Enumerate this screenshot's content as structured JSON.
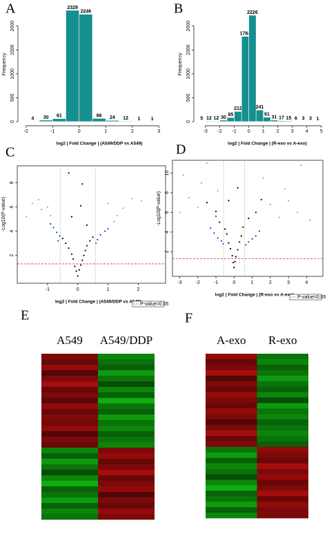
{
  "chart_data": [
    {
      "type": "histogram",
      "panel": "A",
      "x_label": "log2 | Fold Change | (A549/DDP vs A549)",
      "y_label": "Frequency",
      "color": "#168f8f",
      "bins": [
        -2,
        -1.5,
        -1,
        -0.5,
        0,
        0.5,
        1,
        1.5,
        2,
        2.5,
        3
      ],
      "values": [
        4,
        30,
        61,
        2329,
        2246,
        66,
        24,
        12,
        1,
        1
      ],
      "xlim": [
        -2.2,
        3.2
      ],
      "ylim": [
        0,
        2400
      ],
      "xticks": [
        -2,
        -1,
        0,
        1,
        2,
        3
      ],
      "yticks": [
        0,
        500,
        1000,
        1500,
        2000
      ]
    },
    {
      "type": "histogram",
      "panel": "B",
      "x_label": "log2 | Fold Change | (R-exo vs A-exo)",
      "y_label": "Frequency",
      "color": "#168f8f",
      "bins": [
        -3.5,
        -3,
        -2.5,
        -2,
        -1.5,
        -1,
        -0.5,
        0,
        0.5,
        1,
        1.5,
        2,
        2.5,
        3,
        3.5,
        4,
        4.5,
        5
      ],
      "values": [
        5,
        12,
        12,
        30,
        85,
        212,
        1784,
        2226,
        241,
        91,
        31,
        17,
        15,
        6,
        3,
        3,
        1
      ],
      "xlim": [
        -3.6,
        5.2
      ],
      "ylim": [
        0,
        2400
      ],
      "xticks": [
        -3,
        -2,
        -1,
        0,
        1,
        2,
        3,
        4,
        5
      ],
      "yticks": [
        0,
        500,
        1000,
        1500,
        2000
      ]
    },
    {
      "type": "volcano",
      "panel": "C",
      "x_label": "log2 | Fold Change | (A549/DDP vs A549)",
      "y_label": "-Log10(P-value)",
      "legend": "P-value=0.05",
      "xlim": [
        -2,
        2.9
      ],
      "ylim": [
        -0.3,
        9.4
      ],
      "xticks": [
        -1,
        0,
        1,
        2
      ],
      "yticks": [
        2,
        4,
        6,
        8
      ],
      "vlines": [
        -0.58,
        0.58
      ],
      "vline_color": "#7ccc7c",
      "hline": 1.3,
      "hline_color": "#cc3333",
      "series": [
        {
          "color": "#a8a888",
          "x": [
            -1.2,
            -1.5,
            -1.0,
            -1.7,
            1.2,
            1.5,
            1.8,
            2.1,
            2.7,
            -1.3,
            1.0,
            -0.9,
            1.3
          ],
          "values": [
            5.8,
            6.3,
            6.0,
            5.2,
            4.8,
            5.9,
            6.7,
            6.5,
            5.8,
            6.6,
            6.3,
            5.3,
            5.3
          ]
        },
        {
          "color": "#2a3acc",
          "x": [
            -0.6,
            -0.7,
            -0.8,
            0.65,
            0.75,
            0.9,
            -0.9,
            1.0,
            0.6,
            -0.65
          ],
          "values": [
            3.6,
            3.9,
            4.3,
            3.3,
            3.7,
            4.0,
            4.6,
            4.2,
            3.0,
            3.2
          ]
        },
        {
          "color": "#000000",
          "x": [
            0,
            0.05,
            -0.05,
            0.1,
            -0.1,
            0.15,
            -0.15,
            0.2,
            -0.2,
            0.25,
            -0.3,
            0.3,
            -0.4,
            0.4,
            0.5,
            -0.5,
            0.3,
            -0.2,
            0.1,
            -0.3,
            0.15
          ],
          "values": [
            0.3,
            0.8,
            0.7,
            1.2,
            1.1,
            1.6,
            1.7,
            2.0,
            2.1,
            2.4,
            2.6,
            2.8,
            3.0,
            3.2,
            3.5,
            3.4,
            4.5,
            5.2,
            6.1,
            8.8,
            7.9
          ]
        }
      ]
    },
    {
      "type": "volcano",
      "panel": "D",
      "x_label": "log2 | Fold Change | (R-exo vs A-exo)",
      "y_label": "-Log10(P-value)",
      "legend": "P-value=0.05",
      "xlim": [
        -3.4,
        4.9
      ],
      "ylim": [
        -0.5,
        11.3
      ],
      "xticks": [
        -3,
        -2,
        -1,
        0,
        1,
        2,
        3,
        4
      ],
      "yticks": [
        2,
        4,
        6,
        8,
        10
      ],
      "vlines": [
        -0.58,
        0.58
      ],
      "vline_color": "#7ccc7c",
      "hline": 1.3,
      "hline_color": "#cc3333",
      "series": [
        {
          "color": "#a8a888",
          "x": [
            -2.8,
            -2.5,
            -2.0,
            -1.8,
            -1.5,
            -3.0,
            2.0,
            2.5,
            3.0,
            3.5,
            4.2,
            3.7,
            2.8,
            -0.9,
            1.6
          ],
          "values": [
            9.8,
            7.5,
            6.5,
            9.0,
            11.0,
            6.0,
            6.8,
            5.5,
            7.2,
            6.0,
            5.2,
            10.8,
            8.4,
            8.2,
            9.5
          ]
        },
        {
          "color": "#2a3acc",
          "x": [
            -0.6,
            -0.7,
            -0.9,
            -1.1,
            0.65,
            0.8,
            1.0,
            1.2,
            -1.3,
            1.4,
            -1.0
          ],
          "values": [
            2.8,
            3.1,
            3.4,
            3.9,
            2.7,
            3.0,
            3.3,
            3.6,
            4.4,
            4.1,
            5.6
          ]
        },
        {
          "color": "#000000",
          "x": [
            0,
            0.05,
            -0.05,
            0.1,
            -0.1,
            0.2,
            -0.2,
            0.3,
            -0.3,
            0.4,
            -0.4,
            0.5,
            -0.5,
            -0.8,
            0.8,
            -1.0,
            1.2,
            -0.3,
            0.2,
            -1.5,
            1.5
          ],
          "values": [
            0.4,
            1.0,
            0.9,
            1.5,
            1.6,
            2.2,
            2.3,
            3.0,
            2.9,
            3.6,
            3.8,
            4.5,
            4.3,
            5.0,
            5.4,
            6.1,
            6.0,
            7.2,
            8.5,
            7.0,
            7.3
          ]
        }
      ]
    },
    {
      "type": "heatmap",
      "panel": "E",
      "columns": [
        "A549",
        "A549/DDP"
      ],
      "clim": [
        -1,
        1
      ],
      "low_color": "#10c010",
      "mid_color": "#000000",
      "high_color": "#d01010",
      "rows": [
        [
          0.6,
          -0.7
        ],
        [
          0.5,
          -0.6
        ],
        [
          0.7,
          -0.5
        ],
        [
          0.4,
          -0.8
        ],
        [
          0.6,
          -0.6
        ],
        [
          0.8,
          -0.4
        ],
        [
          0.5,
          -0.7
        ],
        [
          0.6,
          -0.5
        ],
        [
          0.45,
          -0.9
        ],
        [
          0.7,
          -0.6
        ],
        [
          0.5,
          -0.5
        ],
        [
          0.6,
          -0.8
        ],
        [
          0.55,
          -0.6
        ],
        [
          0.7,
          -0.7
        ],
        [
          0.4,
          -0.5
        ],
        [
          0.6,
          -0.6
        ],
        [
          0.5,
          -0.7
        ],
        [
          -0.7,
          0.6
        ],
        [
          -0.5,
          0.7
        ],
        [
          -0.8,
          0.5
        ],
        [
          -0.6,
          0.6
        ],
        [
          -0.4,
          0.8
        ],
        [
          -0.7,
          0.5
        ],
        [
          -0.9,
          0.6
        ],
        [
          -0.5,
          0.7
        ],
        [
          -0.6,
          0.4
        ],
        [
          -0.8,
          0.6
        ],
        [
          -0.5,
          0.5
        ],
        [
          -0.7,
          0.7
        ],
        [
          -0.6,
          0.6
        ]
      ]
    },
    {
      "type": "heatmap",
      "panel": "F",
      "columns": [
        "A-exo",
        "R-exo"
      ],
      "clim": [
        -1,
        1
      ],
      "low_color": "#10c010",
      "mid_color": "#000000",
      "high_color": "#d01010",
      "rows": [
        [
          0.7,
          -0.6
        ],
        [
          0.5,
          -0.7
        ],
        [
          0.6,
          -0.5
        ],
        [
          0.8,
          -0.6
        ],
        [
          0.4,
          -0.8
        ],
        [
          0.6,
          -0.6
        ],
        [
          0.5,
          -0.5
        ],
        [
          0.7,
          -0.7
        ],
        [
          0.6,
          -0.4
        ],
        [
          0.5,
          -0.8
        ],
        [
          0.7,
          -0.6
        ],
        [
          0.6,
          -0.7
        ],
        [
          0.4,
          -0.5
        ],
        [
          0.6,
          -0.6
        ],
        [
          0.8,
          -0.7
        ],
        [
          0.5,
          -0.6
        ],
        [
          0.6,
          -0.5
        ],
        [
          -0.6,
          0.7
        ],
        [
          -0.8,
          0.6
        ],
        [
          -0.5,
          0.5
        ],
        [
          -0.7,
          0.8
        ],
        [
          -0.6,
          0.6
        ],
        [
          -0.4,
          0.7
        ],
        [
          -0.7,
          0.5
        ],
        [
          -0.9,
          0.6
        ],
        [
          -0.5,
          0.8
        ],
        [
          -0.6,
          0.5
        ],
        [
          -0.8,
          0.7
        ],
        [
          -0.5,
          0.6
        ],
        [
          -0.7,
          0.6
        ]
      ]
    }
  ]
}
